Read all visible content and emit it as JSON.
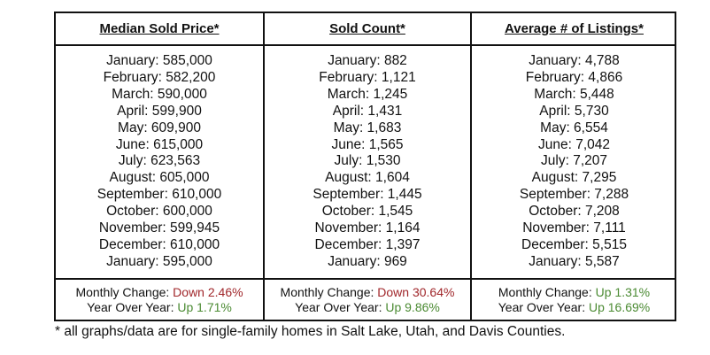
{
  "columns": [
    {
      "title": "Median Sold Price*",
      "rows": [
        "January: 585,000",
        "February: 582,200",
        "March: 590,000",
        "April: 599,900",
        "May: 609,900",
        "June: 615,000",
        "July: 623,563",
        "August: 605,000",
        "September: 610,000",
        "October: 600,000",
        "November: 599,945",
        "December: 610,000",
        "January: 595,000"
      ],
      "monthly_label": "Monthly Change: ",
      "monthly_value": "Down 2.46%",
      "monthly_dir": "down",
      "yoy_label": "Year Over Year: ",
      "yoy_value": "Up 1.71%",
      "yoy_dir": "up"
    },
    {
      "title": "Sold Count*",
      "rows": [
        "January: 882",
        "February: 1,121",
        "March: 1,245",
        "April: 1,431",
        "May: 1,683",
        "June: 1,565",
        "July: 1,530",
        "August: 1,604",
        "September: 1,445",
        "October: 1,545",
        "November: 1,164",
        "December: 1,397",
        "January: 969"
      ],
      "monthly_label": "Monthly Change: ",
      "monthly_value": "Down 30.64%",
      "monthly_dir": "down",
      "yoy_label": "Year Over Year: ",
      "yoy_value": "Up 9.86%",
      "yoy_dir": "up"
    },
    {
      "title": "Average # of Listings*",
      "rows": [
        "January: 4,788",
        "February: 4,866",
        "March: 5,448",
        "April: 5,730",
        "May: 6,554",
        "June: 7,042",
        "July: 7,207",
        "August: 7,295",
        "September: 7,288",
        "October: 7,208",
        "November: 7,111",
        "December: 5,515",
        "January: 5,587"
      ],
      "monthly_label": "Monthly Change: ",
      "monthly_value": "Up 1.31%",
      "monthly_dir": "up",
      "yoy_label": "Year Over Year: ",
      "yoy_value": "Up 16.69%",
      "yoy_dir": "up"
    }
  ],
  "colors": {
    "down": "#a0262a",
    "up": "#4a8a32"
  },
  "footnote": "* all graphs/data are for single-family homes in Salt Lake, Utah, and Davis Counties."
}
